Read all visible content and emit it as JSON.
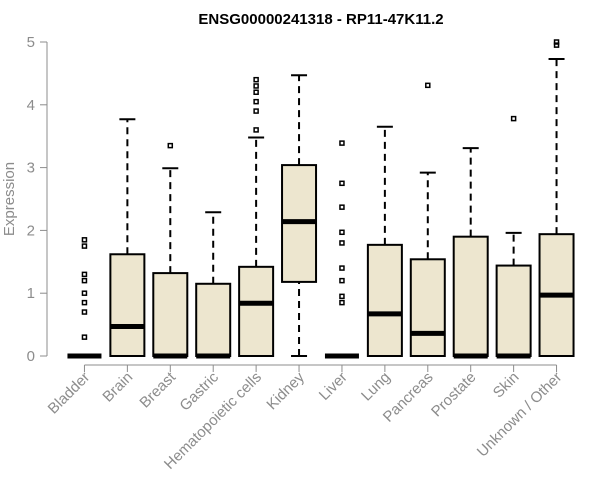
{
  "chart_data": {
    "type": "boxplot",
    "title": "ENSG00000241318 - RP11-47K11.2",
    "xlabel": "",
    "ylabel": "Expression",
    "ylim": [
      0,
      5
    ],
    "yticks": [
      0,
      1,
      2,
      3,
      4,
      5
    ],
    "box_fill": "#ede6cf",
    "box_stroke": "#000000",
    "axis_color": "#8c8c8c",
    "categories": [
      "Bladder",
      "Brain",
      "Breast",
      "Gastric",
      "Hematopoietic cells",
      "Kidney",
      "Liver",
      "Lung",
      "Pancreas",
      "Prostate",
      "Skin",
      "Unknown / Other"
    ],
    "boxes": [
      {
        "q1": 0,
        "median": 0,
        "q3": 0,
        "whisker_low": 0,
        "whisker_high": 0,
        "outliers": [
          0.3,
          0.7,
          0.85,
          1.0,
          1.2,
          1.3,
          1.75,
          1.85
        ]
      },
      {
        "q1": 0,
        "median": 0.47,
        "q3": 1.62,
        "whisker_low": 0,
        "whisker_high": 3.77,
        "outliers": []
      },
      {
        "q1": 0,
        "median": 0,
        "q3": 1.32,
        "whisker_low": 0,
        "whisker_high": 2.99,
        "outliers": [
          3.35
        ]
      },
      {
        "q1": 0,
        "median": 0,
        "q3": 1.15,
        "whisker_low": 0,
        "whisker_high": 2.29,
        "outliers": []
      },
      {
        "q1": 0,
        "median": 0.84,
        "q3": 1.42,
        "whisker_low": 0,
        "whisker_high": 3.48,
        "outliers": [
          3.6,
          3.9,
          4.05,
          4.2,
          4.3,
          4.4
        ]
      },
      {
        "q1": 1.18,
        "median": 2.14,
        "q3": 3.04,
        "whisker_low": 0,
        "whisker_high": 4.47,
        "outliers": []
      },
      {
        "q1": 0,
        "median": 0,
        "q3": 0,
        "whisker_low": 0,
        "whisker_high": 0,
        "outliers": [
          0.85,
          0.95,
          1.2,
          1.4,
          1.8,
          1.97,
          2.37,
          2.75,
          3.39
        ]
      },
      {
        "q1": 0,
        "median": 0.67,
        "q3": 1.77,
        "whisker_low": 0,
        "whisker_high": 3.65,
        "outliers": []
      },
      {
        "q1": 0,
        "median": 0.36,
        "q3": 1.54,
        "whisker_low": 0,
        "whisker_high": 2.92,
        "outliers": [
          4.31
        ]
      },
      {
        "q1": 0,
        "median": 0,
        "q3": 1.9,
        "whisker_low": 0,
        "whisker_high": 3.31,
        "outliers": []
      },
      {
        "q1": 0,
        "median": 0,
        "q3": 1.44,
        "whisker_low": 0,
        "whisker_high": 1.96,
        "outliers": [
          3.78
        ]
      },
      {
        "q1": 0,
        "median": 0.97,
        "q3": 1.94,
        "whisker_low": 0,
        "whisker_high": 4.73,
        "outliers": [
          4.95,
          5.0
        ]
      }
    ]
  }
}
